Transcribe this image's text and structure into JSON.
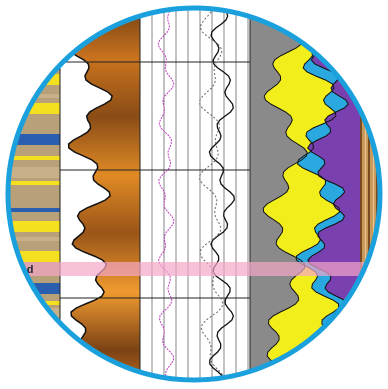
{
  "label": "nd"
}
